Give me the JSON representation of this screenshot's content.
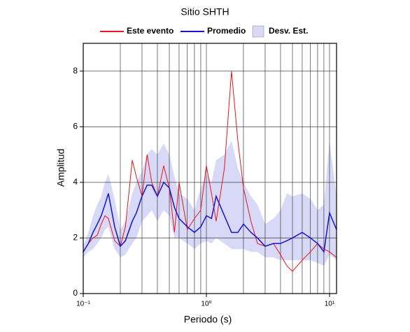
{
  "chart_data": {
    "type": "line",
    "title": "Sitio SHTH",
    "x_label": "Periodo (s)",
    "y_label": "Amplitud",
    "log_x": true,
    "grid": true,
    "x": [
      0.1,
      0.11,
      0.12,
      0.13,
      0.14,
      0.15,
      0.16,
      0.18,
      0.2,
      0.22,
      0.25,
      0.27,
      0.3,
      0.33,
      0.36,
      0.4,
      0.45,
      0.5,
      0.55,
      0.6,
      0.7,
      0.8,
      0.9,
      1.0,
      1.1,
      1.2,
      1.4,
      1.6,
      1.8,
      2.0,
      2.3,
      2.6,
      3,
      3.5,
      4,
      4.5,
      5,
      6,
      7,
      8,
      9,
      10,
      11.4
    ],
    "series": [
      {
        "name": "Este evento",
        "color": "#e8141e",
        "values": [
          1.5,
          1.8,
          2.0,
          2.1,
          2.5,
          2.8,
          2.7,
          1.9,
          1.7,
          2.4,
          4.8,
          4.2,
          3.5,
          5.0,
          4.0,
          3.5,
          4.6,
          3.8,
          2.2,
          4.0,
          2.3,
          2.7,
          3.0,
          4.6,
          3.6,
          2.6,
          4.5,
          8.0,
          5.5,
          3.8,
          2.6,
          1.8,
          1.7,
          1.8,
          1.4,
          1.0,
          0.8,
          1.2,
          1.5,
          1.8,
          1.6,
          1.5,
          1.3
        ]
      },
      {
        "name": "Promedio",
        "color": "#1414d2",
        "values": [
          1.5,
          1.8,
          2.2,
          2.5,
          2.8,
          3.2,
          3.6,
          2.4,
          1.7,
          1.9,
          2.6,
          2.9,
          3.5,
          3.9,
          3.9,
          3.5,
          4.0,
          3.8,
          3.1,
          2.7,
          2.4,
          2.2,
          2.4,
          2.8,
          2.7,
          3.5,
          2.8,
          2.2,
          2.2,
          2.5,
          2.2,
          2.0,
          1.7,
          1.8,
          1.8,
          1.9,
          2.0,
          2.2,
          2.0,
          1.8,
          1.5,
          2.9,
          2.3
        ]
      }
    ],
    "band": {
      "name": "Desv. Est.",
      "color": "#d8d8f7",
      "lower": [
        1.3,
        1.5,
        1.6,
        1.8,
        2.0,
        2.3,
        2.4,
        1.6,
        1.3,
        1.4,
        1.8,
        2.0,
        2.6,
        2.8,
        3.0,
        2.6,
        3.0,
        2.8,
        2.0,
        2.0,
        1.8,
        1.6,
        1.8,
        1.9,
        1.8,
        2.0,
        1.8,
        1.6,
        1.6,
        1.6,
        1.5,
        1.5,
        1.3,
        1.3,
        1.2,
        1.2,
        1.2,
        1.2,
        1.2,
        1.1,
        1.0,
        1.4,
        1.2
      ],
      "upper": [
        1.7,
        2.2,
        2.8,
        3.2,
        3.5,
        4.0,
        4.3,
        3.4,
        2.3,
        2.6,
        3.6,
        4.0,
        4.4,
        5.0,
        5.2,
        5.0,
        5.4,
        5.0,
        4.2,
        3.6,
        3.4,
        3.0,
        3.8,
        4.3,
        4.0,
        4.8,
        5.0,
        5.5,
        4.5,
        4.0,
        3.5,
        3.2,
        2.5,
        2.7,
        3.0,
        3.6,
        3.5,
        3.6,
        3.4,
        3.0,
        3.2,
        5.5,
        3.5
      ]
    },
    "xlim": [
      0.1,
      11.4
    ],
    "ylim": [
      0,
      9
    ],
    "xticks": [
      {
        "value": 0.1,
        "label": "10⁻¹"
      },
      {
        "value": 1,
        "label": "10⁰"
      },
      {
        "value": 10,
        "label": "10¹"
      }
    ],
    "xgrid": [
      0.2,
      0.3,
      0.4,
      0.5,
      0.6,
      0.7,
      0.8,
      0.9,
      1,
      2,
      3,
      4,
      5,
      6,
      7,
      8,
      9,
      10
    ],
    "yticks": [
      0,
      2,
      4,
      6,
      8
    ]
  }
}
